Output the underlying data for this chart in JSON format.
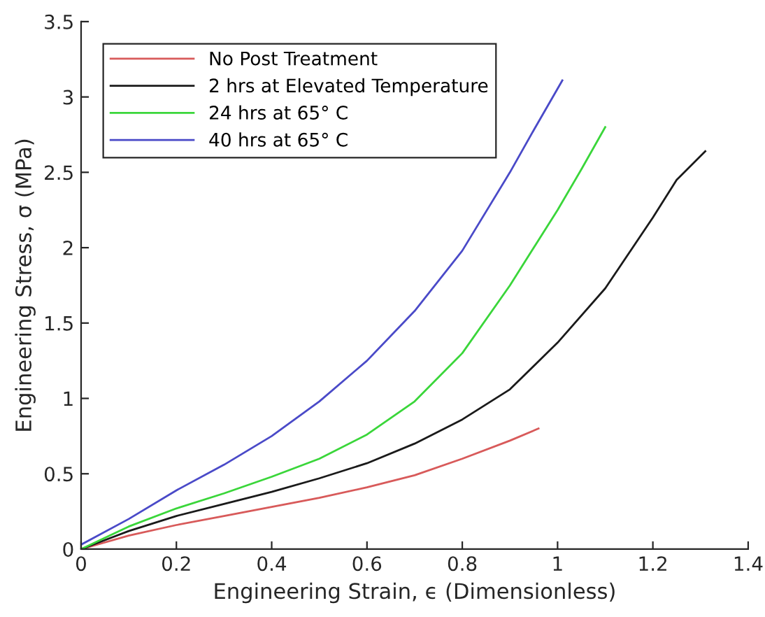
{
  "chart_data": {
    "type": "line",
    "xlabel": "Engineering Strain, ϵ (Dimensionless)",
    "ylabel": "Engineering Stress, σ (MPa)",
    "xlim": [
      0,
      1.4
    ],
    "ylim": [
      0,
      3.5
    ],
    "xticks": [
      0,
      0.2,
      0.4,
      0.6,
      0.8,
      1,
      1.2,
      1.4
    ],
    "yticks": [
      0,
      0.5,
      1,
      1.5,
      2,
      2.5,
      3,
      3.5
    ],
    "grid": false,
    "legend": "top left",
    "marker": "none",
    "line_style": "solid",
    "series": [
      {
        "name": "No Post Treatment",
        "color": "#d85a5a",
        "x": [
          0,
          0.1,
          0.2,
          0.3,
          0.4,
          0.5,
          0.6,
          0.7,
          0.8,
          0.9,
          0.96
        ],
        "values": [
          0,
          0.09,
          0.16,
          0.22,
          0.28,
          0.34,
          0.41,
          0.49,
          0.6,
          0.72,
          0.8
        ]
      },
      {
        "name": "2 hrs at Elevated Temperature",
        "color": "#1a1a1a",
        "x": [
          0,
          0.1,
          0.2,
          0.3,
          0.4,
          0.5,
          0.6,
          0.7,
          0.8,
          0.9,
          1.0,
          1.1,
          1.2,
          1.25,
          1.31
        ],
        "values": [
          0,
          0.12,
          0.22,
          0.3,
          0.38,
          0.47,
          0.57,
          0.7,
          0.86,
          1.06,
          1.37,
          1.73,
          2.2,
          2.45,
          2.64
        ]
      },
      {
        "name": "24 hrs at 65° C",
        "color": "#3ad63a",
        "x": [
          0,
          0.1,
          0.2,
          0.3,
          0.4,
          0.5,
          0.6,
          0.7,
          0.8,
          0.9,
          1.0,
          1.05,
          1.1
        ],
        "values": [
          0,
          0.15,
          0.27,
          0.37,
          0.48,
          0.6,
          0.76,
          0.98,
          1.3,
          1.75,
          2.25,
          2.52,
          2.8
        ]
      },
      {
        "name": "40 hrs at 65° C",
        "color": "#4a4ac8",
        "x": [
          0,
          0.1,
          0.2,
          0.3,
          0.4,
          0.5,
          0.6,
          0.7,
          0.8,
          0.9,
          0.95,
          1.01
        ],
        "values": [
          0.03,
          0.2,
          0.39,
          0.56,
          0.75,
          0.98,
          1.25,
          1.58,
          1.98,
          2.5,
          2.78,
          3.11
        ]
      }
    ]
  }
}
